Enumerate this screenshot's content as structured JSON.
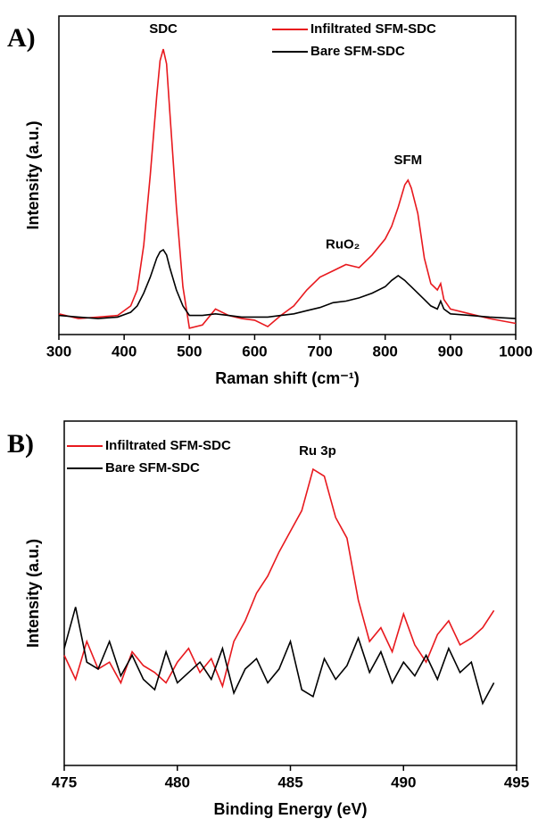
{
  "chart_data": [
    {
      "type": "line",
      "panel_label": "A)",
      "x_label": "Raman shift (cm⁻¹)",
      "y_label": "Intensity (a.u.)",
      "annotations": [
        "SDC",
        "SFM",
        "RuO₂"
      ],
      "xlim": [
        300,
        1000
      ],
      "xticks": [
        300,
        400,
        500,
        600,
        700,
        800,
        900,
        1000
      ],
      "ylim": [
        0,
        100
      ],
      "x": [
        300,
        330,
        360,
        390,
        410,
        420,
        430,
        440,
        450,
        455,
        460,
        465,
        470,
        480,
        490,
        500,
        520,
        540,
        560,
        580,
        600,
        620,
        640,
        660,
        680,
        700,
        720,
        740,
        760,
        780,
        800,
        810,
        820,
        830,
        835,
        840,
        850,
        860,
        870,
        880,
        885,
        890,
        900,
        930,
        960,
        1000
      ],
      "series": [
        {
          "name": "Infiltrated SFM-SDC",
          "color": "#e8191e",
          "values": [
            6.5,
            5,
            5.5,
            6,
            9,
            14,
            28,
            50,
            75,
            86,
            89.6,
            85,
            70,
            40,
            15,
            2,
            3,
            8,
            6,
            5,
            4.5,
            2.5,
            6,
            9,
            14,
            18,
            20,
            22,
            21,
            25,
            30,
            34,
            40,
            47,
            48.5,
            46,
            38,
            24,
            16,
            14,
            16,
            11,
            8,
            6.5,
            5,
            3.5
          ]
        },
        {
          "name": "Bare SFM-SDC",
          "color": "#000000",
          "values": [
            6,
            5.5,
            5,
            5.5,
            7,
            9,
            13,
            18,
            24,
            26,
            26.6,
            25,
            21,
            14,
            9,
            6,
            6,
            6.5,
            6,
            5.5,
            5.5,
            5.5,
            6,
            6.5,
            7.5,
            8.5,
            10,
            10.5,
            11.5,
            13,
            15,
            17,
            18.5,
            17,
            16,
            15,
            13,
            11,
            9,
            8,
            10.5,
            8,
            6.5,
            6,
            5.5,
            5
          ]
        }
      ]
    },
    {
      "type": "line",
      "panel_label": "B)",
      "x_label": "Binding Energy (eV)",
      "y_label": "Intensity (a.u.)",
      "annotations": [
        "Ru 3p"
      ],
      "xlim": [
        475,
        495
      ],
      "xticks": [
        475,
        480,
        485,
        490,
        495
      ],
      "ylim": [
        0,
        100
      ],
      "x": [
        475,
        475.5,
        476,
        476.5,
        477,
        477.5,
        478,
        478.5,
        479,
        479.5,
        480,
        480.5,
        481,
        481.5,
        482,
        482.5,
        483,
        483.5,
        484,
        484.5,
        485,
        485.5,
        486,
        486.5,
        487,
        487.5,
        488,
        488.5,
        489,
        489.5,
        490,
        490.5,
        491,
        491.5,
        492,
        492.5,
        493,
        493.5,
        494
      ],
      "series": [
        {
          "name": "Infiltrated SFM-SDC",
          "color": "#e8191e",
          "values": [
            32,
            25,
            36,
            28,
            30,
            24,
            33,
            29,
            27,
            24,
            30,
            34,
            27,
            31,
            23,
            36,
            42,
            50,
            55,
            62,
            68,
            74,
            86,
            84,
            72,
            66,
            48,
            36,
            40,
            33,
            44,
            35,
            30,
            38,
            42,
            35,
            37,
            40,
            45
          ]
        },
        {
          "name": "Bare SFM-SDC",
          "color": "#000000",
          "values": [
            34,
            46,
            30,
            28,
            36,
            26,
            32,
            25,
            22,
            33,
            24,
            27,
            30,
            25,
            34,
            21,
            28,
            31,
            24,
            28,
            36,
            22,
            20,
            31,
            25,
            29,
            37,
            27,
            33,
            24,
            30,
            26,
            32,
            25,
            34,
            27,
            30,
            18,
            24
          ]
        }
      ]
    }
  ]
}
